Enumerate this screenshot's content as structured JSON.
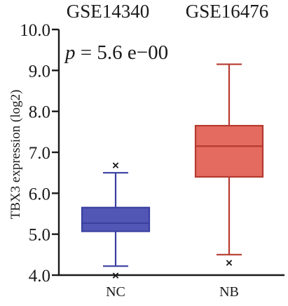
{
  "chart_data": {
    "type": "box",
    "datasets": [
      "GSE14340",
      "GSE16476"
    ],
    "ylabel": "TBX3 expression (log2)",
    "ylim": [
      4.0,
      10.0
    ],
    "yticks": [
      {
        "value": 4.0,
        "label": "4.0"
      },
      {
        "value": 5.0,
        "label": "5.0"
      },
      {
        "value": 6.0,
        "label": "6.0"
      },
      {
        "value": 7.0,
        "label": "7.0"
      },
      {
        "value": 8.0,
        "label": "8.0"
      },
      {
        "value": 9.0,
        "label": "9.0"
      },
      {
        "value": 10.0,
        "label": "10.0"
      }
    ],
    "annotation": {
      "p_symbol": "p",
      "p_text": " = 5.6 e−00"
    },
    "boxes": [
      {
        "category": "NC",
        "whisker_low": 4.22,
        "q1": 5.07,
        "median": 5.27,
        "q3": 5.65,
        "whisker_high": 6.5,
        "outliers": [
          3.99,
          6.68
        ],
        "fill": "#5257b5",
        "stroke": "#3a3fa0"
      },
      {
        "category": "NB",
        "whisker_low": 4.5,
        "q1": 6.4,
        "median": 7.15,
        "q3": 7.65,
        "whisker_high": 9.15,
        "outliers": [
          4.3
        ],
        "fill": "#e36b60",
        "stroke": "#b63a31"
      }
    ]
  }
}
